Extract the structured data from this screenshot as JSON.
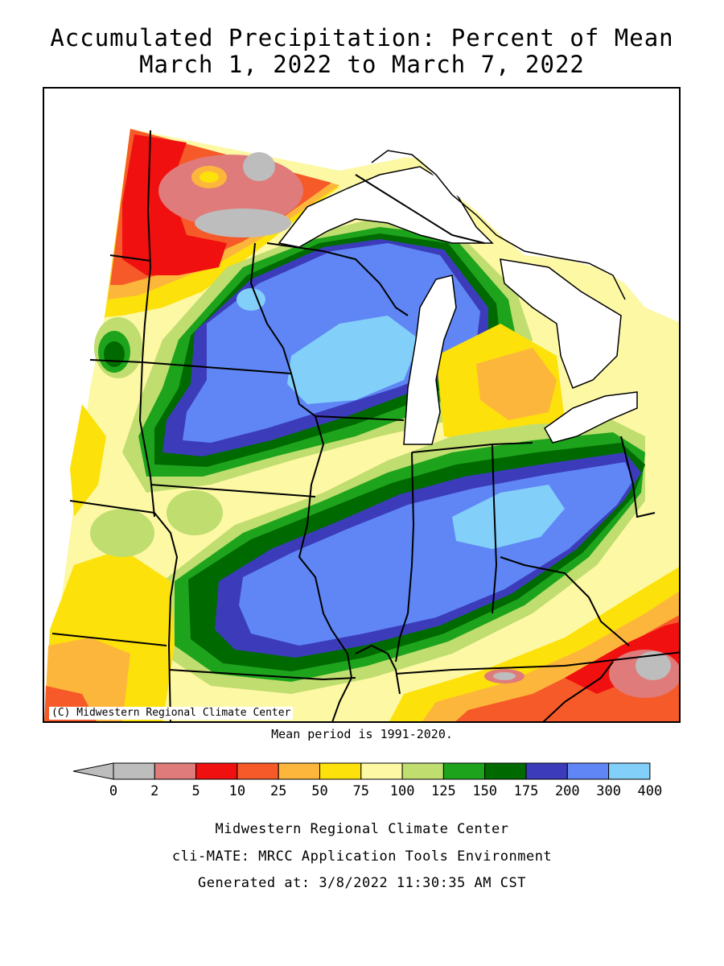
{
  "title": {
    "line1": "Accumulated Precipitation: Percent of Mean",
    "line2": "March 1, 2022 to March 7, 2022"
  },
  "map": {
    "copyright": "(C) Midwestern Regional Climate Center",
    "mean_period": "Mean period is 1991-2020."
  },
  "legend": {
    "bins": [
      {
        "color": "#bdbdbd"
      },
      {
        "color": "#e07b7b"
      },
      {
        "color": "#f01010"
      },
      {
        "color": "#f65a28"
      },
      {
        "color": "#fdb63c"
      },
      {
        "color": "#fde10a"
      },
      {
        "color": "#fdf8a4"
      },
      {
        "color": "#c0dd70"
      },
      {
        "color": "#1ea41c"
      },
      {
        "color": "#006a00"
      },
      {
        "color": "#3c3cbb"
      },
      {
        "color": "#5f86f4"
      },
      {
        "color": "#82cffa"
      }
    ],
    "labels": [
      "0",
      "2",
      "5",
      "10",
      "25",
      "50",
      "75",
      "100",
      "125",
      "150",
      "175",
      "200",
      "300",
      "400"
    ]
  },
  "credits": {
    "line1": "Midwestern Regional Climate Center",
    "line2": "cli-MATE: MRCC Application Tools Environment",
    "line3": "Generated at: 3/8/2022 11:30:35 AM CST"
  }
}
